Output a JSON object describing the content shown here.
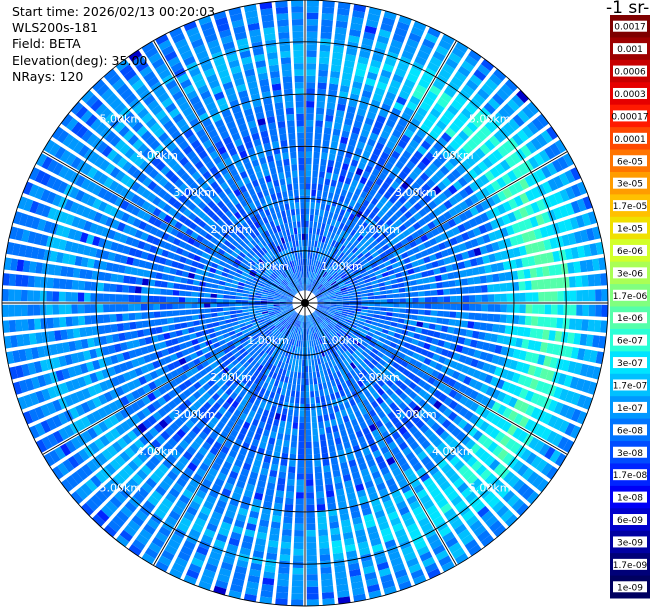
{
  "header": {
    "start_time": "Start time: 2026/02/13 00:20:03",
    "instrument": "WLS200s-181",
    "field": "Field: BETA",
    "elevation": "Elevation(deg): 35.00",
    "nrays": "NRays: 120"
  },
  "colorbar": {
    "unit_label": "-1 sr-",
    "labels": [
      "0.0017",
      "0.001",
      "0.0006",
      "0.0003",
      "0.00017",
      "0.0001",
      "6e-05",
      "3e-05",
      "1.7e-05",
      "1e-05",
      "6e-06",
      "3e-06",
      "1.7e-06",
      "1e-06",
      "6e-07",
      "3e-07",
      "1.7e-07",
      "1e-07",
      "6e-08",
      "3e-08",
      "1.7e-08",
      "1e-08",
      "6e-09",
      "3e-09",
      "1.7e-09",
      "1e-09"
    ],
    "colors": [
      "#7f0000",
      "#9e0000",
      "#c80000",
      "#e60000",
      "#ff1a00",
      "#ff4800",
      "#ff7400",
      "#ff9c00",
      "#ffc000",
      "#f0e000",
      "#d2ff2a",
      "#aaff55",
      "#80ff7f",
      "#55ffaa",
      "#2affd6",
      "#00e4ff",
      "#00c0ff",
      "#0098ff",
      "#0074ff",
      "#004cff",
      "#0024ff",
      "#0000f6",
      "#0000cc",
      "#0000a2",
      "#000078",
      "#000060"
    ]
  },
  "chart_data": {
    "type": "ppi",
    "field": "BETA",
    "elevation_deg": 35.0,
    "n_rays": 120,
    "range_rings_km": [
      1,
      2,
      3,
      4,
      5
    ],
    "range_labels": [
      "1.00km",
      "2.00km",
      "3.00km",
      "4.00km",
      "5.00km"
    ],
    "max_range_km": 5.8,
    "spoke_bearings_deg": [
      0,
      30,
      60,
      90,
      120,
      150,
      180,
      210,
      240,
      270,
      300,
      330
    ],
    "background_beta": "3e-08",
    "enhanced_region": {
      "beta": "1e-07",
      "range_km": [
        3.6,
        5.8
      ],
      "strongest_azimuth_deg": [
        45,
        135
      ]
    }
  }
}
